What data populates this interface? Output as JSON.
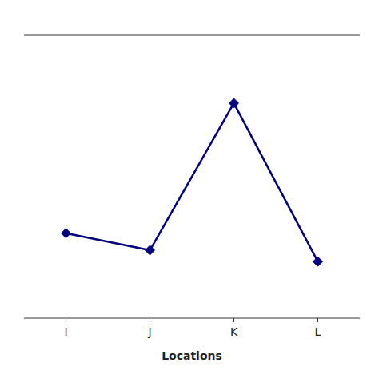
{
  "chart_data": {
    "type": "line",
    "xlabel": "Locations",
    "categories": [
      "I",
      "J",
      "K",
      "L"
    ],
    "values": [
      3.5,
      3.2,
      5.8,
      3.0
    ],
    "color": "#000080",
    "marker": "diamond",
    "ylim": [
      2.0,
      7.0
    ],
    "grid": false,
    "tick_labels": "x"
  }
}
